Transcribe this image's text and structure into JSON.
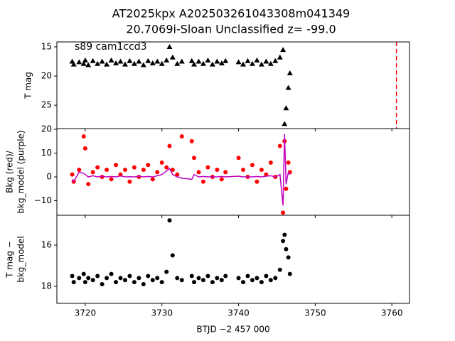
{
  "chart_data": [
    {
      "type": "scatter",
      "title": [
        "AT2025kpx  A202503261043308m041349",
        "20.7069i-Sloan Unclassified z= -99.0"
      ],
      "annotation": "s89 cam1ccd3",
      "ylabel": [
        "T mag"
      ],
      "xlim": [
        3716.3,
        3762.3
      ],
      "ylim": [
        29.0,
        14.15
      ],
      "yticks": [
        15,
        20,
        25
      ],
      "vline": 3760.6,
      "vline_color": "#ff0000",
      "x": [
        3718.3,
        3718.5,
        3719.2,
        3719.8,
        3720.0,
        3720.4,
        3721,
        3721.6,
        3722.2,
        3722.8,
        3723.4,
        3724,
        3724.6,
        3725.2,
        3725.8,
        3726.4,
        3727,
        3727.6,
        3728.2,
        3728.8,
        3729.4,
        3730,
        3730.6,
        3731,
        3731.4,
        3732,
        3732.6,
        3733.9,
        3734.2,
        3734.8,
        3735.4,
        3736,
        3736.6,
        3737.2,
        3737.8,
        3738.3,
        3740,
        3740.6,
        3741.2,
        3741.8,
        3742.4,
        3743,
        3743.6,
        3744.2,
        3744.8,
        3745.4,
        3745.8,
        3746.0,
        3746.2,
        3746.5,
        3746.7
      ],
      "series": [
        {
          "color": "#000000",
          "marker": "triangle",
          "values": [
            17.5,
            18.0,
            17.6,
            17.9,
            17.3,
            18.1,
            17.4,
            17.9,
            17.5,
            18.0,
            17.3,
            17.8,
            17.5,
            18.0,
            17.4,
            17.9,
            17.5,
            18.1,
            17.4,
            17.8,
            17.5,
            17.9,
            17.3,
            15.0,
            16.8,
            17.9,
            17.5,
            17.4,
            18.0,
            17.5,
            17.9,
            17.3,
            18.0,
            17.5,
            17.8,
            17.4,
            17.6,
            18.0,
            17.4,
            17.9,
            17.3,
            18.0,
            17.5,
            17.9,
            17.4,
            16.8,
            15.5,
            28.2,
            25.5,
            22.0,
            19.5
          ]
        }
      ]
    },
    {
      "type": "scatter",
      "ylabel": [
        "Bkg (red)/",
        "bkg_model (purple)"
      ],
      "xlim": [
        3716.3,
        3762.3
      ],
      "ylim": [
        -16.1,
        20.3
      ],
      "yticks": [
        20,
        10,
        0,
        {
          "value": -10,
          "label": "−10"
        }
      ],
      "x": [
        3718.3,
        3718.5,
        3719.2,
        3719.8,
        3720.0,
        3720.4,
        3721,
        3721.6,
        3722.2,
        3722.8,
        3723.4,
        3724,
        3724.6,
        3725.2,
        3725.8,
        3726.4,
        3727,
        3727.6,
        3728.2,
        3728.8,
        3729.4,
        3730,
        3730.6,
        3731,
        3731.4,
        3732,
        3732.6,
        3733.9,
        3734.2,
        3734.8,
        3735.4,
        3736,
        3736.6,
        3737.2,
        3737.8,
        3738.3,
        3740,
        3740.6,
        3741.2,
        3741.8,
        3742.4,
        3743,
        3743.6,
        3744.2,
        3744.8,
        3745.4,
        3745.8,
        3746.0,
        3746.2,
        3746.5,
        3746.7
      ],
      "series": [
        {
          "color": "#ff0000",
          "marker": "circle",
          "values": [
            1,
            -2,
            3,
            17,
            12,
            -3,
            2,
            4,
            0,
            3,
            -1,
            5,
            1,
            3,
            -2,
            4,
            0,
            3,
            5,
            -1,
            2,
            6,
            4,
            13,
            3,
            1,
            17,
            15,
            8,
            2,
            -2,
            4,
            0,
            3,
            -1,
            2,
            8,
            3,
            0,
            5,
            -2,
            3,
            1,
            6,
            0,
            13,
            -15,
            15,
            -5,
            6,
            2
          ]
        },
        {
          "color": "#bf00bf",
          "marker": "line",
          "values": [
            -1,
            -2,
            2,
            1.5,
            1,
            0,
            0.5,
            0,
            0.3,
            0,
            0.2,
            0,
            0.4,
            0,
            0.1,
            0,
            0.3,
            0,
            0.2,
            0,
            0.5,
            1,
            2.5,
            3.5,
            1,
            0,
            -0.5,
            -1,
            1,
            0,
            0.2,
            0,
            0.1,
            0,
            0.2,
            0,
            0.3,
            0,
            0.1,
            0,
            0.2,
            0,
            0.3,
            0.5,
            0,
            1,
            -12,
            18,
            -3,
            2,
            1
          ]
        }
      ]
    },
    {
      "type": "scatter",
      "ylabel": [
        "T mag −",
        "bkg_model"
      ],
      "xlabel": "BTJD −2 457 000",
      "xlim": [
        3716.3,
        3762.3
      ],
      "ylim": [
        18.83,
        14.55
      ],
      "yticks": [
        16,
        18
      ],
      "xticks": [
        3720,
        3730,
        3740,
        3750,
        3760
      ],
      "x": [
        3718.3,
        3718.5,
        3719.2,
        3719.8,
        3720.0,
        3720.4,
        3721,
        3721.6,
        3722.2,
        3722.8,
        3723.4,
        3724,
        3724.6,
        3725.2,
        3725.8,
        3726.4,
        3727,
        3727.6,
        3728.2,
        3728.8,
        3729.4,
        3730,
        3730.6,
        3731,
        3731.4,
        3732,
        3732.6,
        3733.9,
        3734.2,
        3734.8,
        3735.4,
        3736,
        3736.6,
        3737.2,
        3737.8,
        3738.3,
        3740,
        3740.6,
        3741.2,
        3741.8,
        3742.4,
        3743,
        3743.6,
        3744.2,
        3744.8,
        3745.4,
        3745.8,
        3746.0,
        3746.2,
        3746.5,
        3746.7
      ],
      "series": [
        {
          "color": "#000000",
          "marker": "circle",
          "values": [
            17.5,
            17.8,
            17.6,
            17.4,
            17.8,
            17.6,
            17.7,
            17.5,
            17.9,
            17.6,
            17.4,
            17.8,
            17.6,
            17.7,
            17.5,
            17.8,
            17.6,
            17.9,
            17.5,
            17.7,
            17.6,
            17.8,
            17.3,
            14.8,
            16.5,
            17.6,
            17.7,
            17.5,
            17.8,
            17.6,
            17.7,
            17.5,
            17.8,
            17.6,
            17.7,
            17.5,
            17.6,
            17.8,
            17.5,
            17.7,
            17.6,
            17.8,
            17.5,
            17.7,
            17.6,
            17.2,
            15.8,
            15.5,
            16.2,
            16.6,
            17.4
          ]
        }
      ]
    }
  ]
}
